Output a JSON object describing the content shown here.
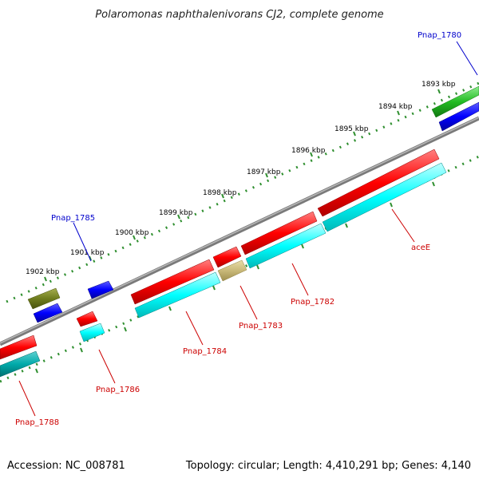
{
  "title": "Polaromonas naphthalenivorans CJ2, complete genome",
  "footer": {
    "accession": "Accession: NC_008781",
    "summary": "Topology: circular; Length: 4,410,291 bp; Genes: 4,140"
  },
  "colors": {
    "background": "#ffffff",
    "backbone": "#808080",
    "tick": "#2f8f2f",
    "forward_cds": "#ff0000",
    "forward_orf": "#0000ff",
    "reverse_cds": "#00ffff",
    "label_forward": "#0000cc",
    "label_reverse": "#cc0000",
    "olive": "#6f7d1e",
    "teal": "#00aaaa",
    "green": "#22bb22",
    "tan": "#c8b878"
  },
  "tick_labels": [
    "1893 kbp",
    "1894 kbp",
    "1895 kbp",
    "1896 kbp",
    "1897 kbp",
    "1898 kbp",
    "1899 kbp",
    "1900 kbp",
    "1901 kbp",
    "1902 kbp"
  ],
  "gene_labels": [
    {
      "name": "Pnap_1780",
      "strand": "forward"
    },
    {
      "name": "Pnap_1785",
      "strand": "forward"
    },
    {
      "name": "aceE",
      "strand": "reverse"
    },
    {
      "name": "Pnap_1782",
      "strand": "reverse"
    },
    {
      "name": "Pnap_1783",
      "strand": "reverse"
    },
    {
      "name": "Pnap_1784",
      "strand": "reverse"
    },
    {
      "name": "Pnap_1786",
      "strand": "reverse"
    },
    {
      "name": "Pnap_1788",
      "strand": "reverse"
    }
  ]
}
